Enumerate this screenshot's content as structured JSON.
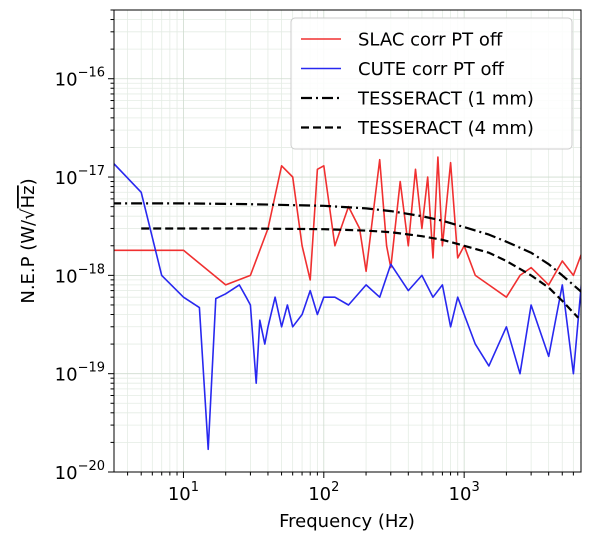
{
  "chart_data": {
    "type": "line",
    "title": "",
    "xlabel": "Frequency (Hz)",
    "ylabel_parts": [
      "N.E.P (W/",
      "√",
      "Hz",
      ")"
    ],
    "xscale": "log",
    "yscale": "log",
    "xlim": [
      3.2,
      6800
    ],
    "ylim": [
      1e-20,
      5e-16
    ],
    "grid": true,
    "legend_position": "top-right",
    "x_ticks": [
      {
        "value": 10,
        "base": "10",
        "exp": "1"
      },
      {
        "value": 100,
        "base": "10",
        "exp": "2"
      },
      {
        "value": 1000,
        "base": "10",
        "exp": "3"
      }
    ],
    "y_ticks": [
      {
        "value": 1e-20,
        "base": "10",
        "exp": "−20"
      },
      {
        "value": 1e-19,
        "base": "10",
        "exp": "−19"
      },
      {
        "value": 1e-18,
        "base": "10",
        "exp": "−18"
      },
      {
        "value": 1e-17,
        "base": "10",
        "exp": "−17"
      },
      {
        "value": 1e-16,
        "base": "10",
        "exp": "−16"
      }
    ],
    "series": [
      {
        "name": "SLAC corr PT off",
        "color": "#f03030",
        "style": "solid",
        "x": [
          3,
          5,
          10,
          20,
          30,
          40,
          50,
          60,
          70,
          80,
          90,
          100,
          120,
          150,
          180,
          200,
          250,
          280,
          300,
          350,
          400,
          450,
          500,
          550,
          600,
          650,
          700,
          800,
          900,
          1000,
          1200,
          1500,
          2000,
          2500,
          3000,
          4000,
          5000,
          6000,
          7000
        ],
        "y": [
          1.8e-18,
          1.8e-18,
          1.8e-18,
          8e-19,
          1e-18,
          3e-18,
          1.3e-17,
          1e-17,
          2e-18,
          9e-19,
          1.2e-17,
          1.3e-17,
          2e-18,
          5e-18,
          3e-18,
          1.1e-18,
          1.5e-17,
          2e-18,
          1.2e-18,
          9e-18,
          2e-18,
          1.2e-17,
          3e-18,
          1e-17,
          1.5e-18,
          1.6e-17,
          2e-18,
          1.4e-17,
          1.5e-18,
          2e-18,
          1e-18,
          8e-19,
          6e-19,
          1e-18,
          1.2e-18,
          8e-19,
          1.4e-18,
          1e-18,
          1.8e-18
        ]
      },
      {
        "name": "CUTE corr PT off",
        "color": "#2828f0",
        "style": "solid",
        "x": [
          3,
          5,
          7,
          10,
          13,
          15,
          17,
          20,
          25,
          28,
          30,
          33,
          35,
          38,
          40,
          45,
          50,
          55,
          60,
          70,
          80,
          90,
          100,
          120,
          150,
          200,
          250,
          300,
          400,
          500,
          600,
          700,
          800,
          900,
          1000,
          1200,
          1500,
          2000,
          2500,
          3000,
          4000,
          5000,
          6000,
          7000
        ],
        "y": [
          1.5e-17,
          7e-18,
          1e-18,
          6e-19,
          4.7e-19,
          1.7e-20,
          5.8e-19,
          6.5e-19,
          8e-19,
          6e-19,
          5e-19,
          8e-20,
          3.5e-19,
          2e-19,
          3e-19,
          6e-19,
          3e-19,
          5e-19,
          3e-19,
          4e-19,
          7e-19,
          4e-19,
          6e-19,
          6e-19,
          5e-19,
          8e-19,
          6e-19,
          1.3e-18,
          7e-19,
          1e-18,
          6e-19,
          8e-19,
          3e-19,
          6e-19,
          4e-19,
          2e-19,
          1.2e-19,
          3e-19,
          1e-19,
          5e-19,
          1.5e-19,
          8e-19,
          1e-19,
          1.2e-18
        ]
      },
      {
        "name": "TESSERACT (1 mm)",
        "color": "#000000",
        "style": "dashdot",
        "x": [
          3,
          10,
          30,
          100,
          200,
          300,
          500,
          700,
          1000,
          1500,
          2000,
          3000,
          4000,
          5000,
          7000
        ],
        "y": [
          5.4e-18,
          5.4e-18,
          5.3e-18,
          5.1e-18,
          4.8e-18,
          4.5e-18,
          4e-18,
          3.6e-18,
          3.1e-18,
          2.6e-18,
          2.2e-18,
          1.7e-18,
          1.3e-18,
          1e-18,
          6.6e-19
        ]
      },
      {
        "name": "TESSERACT (4 mm)",
        "color": "#000000",
        "style": "dashed",
        "x": [
          5,
          10,
          30,
          100,
          200,
          300,
          500,
          700,
          1000,
          1500,
          2000,
          3000,
          4000,
          5000,
          6500
        ],
        "y": [
          3e-18,
          3e-18,
          3e-18,
          2.95e-18,
          2.85e-18,
          2.75e-18,
          2.5e-18,
          2.3e-18,
          2e-18,
          1.7e-18,
          1.4e-18,
          1e-18,
          7.5e-19,
          5.5e-19,
          3.7e-19
        ]
      }
    ]
  }
}
